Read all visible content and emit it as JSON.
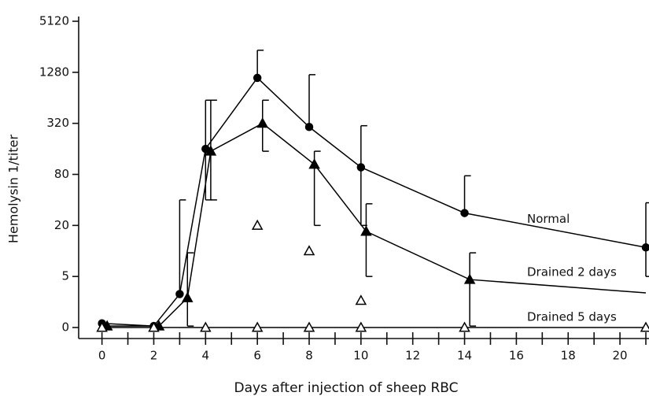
{
  "chart_data": {
    "type": "line",
    "xlabel": "Days after injection of sheep RBC",
    "ylabel": "Hemolysin 1/titer",
    "xlim": [
      -0.9,
      21
    ],
    "xticks": [
      0,
      2,
      4,
      6,
      8,
      10,
      12,
      14,
      16,
      18,
      20
    ],
    "xminor": [
      1,
      3,
      5,
      7,
      9,
      11,
      13,
      15,
      17,
      19,
      21
    ],
    "ylim": [
      0,
      5120
    ],
    "yticks": [
      0,
      5,
      20,
      80,
      320,
      1280,
      5120
    ],
    "log": true,
    "color": "#000000",
    "series": [
      {
        "name": "Normal",
        "marker": "circle",
        "x": [
          0,
          2,
          3,
          4,
          6,
          8,
          10,
          14,
          21
        ],
        "values": [
          1.4,
          1.3,
          3.1,
          160,
          1100,
          290,
          97,
          28,
          11
        ],
        "error_high": [
          null,
          null,
          40,
          600,
          2330,
          1200,
          300,
          77,
          37
        ],
        "error_low": [
          null,
          null,
          null,
          40,
          null,
          null,
          20,
          null,
          5
        ]
      },
      {
        "name": "Drained 2 days",
        "marker": "triangle",
        "x": [
          0.2,
          2.2,
          3.3,
          4.2,
          6.2,
          8.2,
          10.2,
          14.2,
          21
        ],
        "values": [
          1.3,
          1.3,
          2.8,
          150,
          320,
          105,
          17,
          4.6,
          3.2
        ],
        "markers": [
          true,
          true,
          true,
          true,
          true,
          true,
          true,
          true,
          false
        ],
        "error_high": [
          null,
          null,
          9.5,
          600,
          600,
          150,
          36,
          9.5,
          null
        ],
        "error_low": [
          null,
          null,
          1.3,
          40,
          150,
          20,
          5,
          1.3,
          null
        ]
      },
      {
        "name": "Drained 5 days",
        "marker": "open-triangle",
        "x": [
          0,
          2,
          4,
          6,
          8,
          10,
          14,
          21
        ],
        "values": [
          0,
          0,
          0,
          0,
          0,
          0,
          0,
          0
        ]
      }
    ],
    "extra_points": {
      "marker": "open-triangle",
      "x": [
        6,
        8,
        10
      ],
      "values": [
        20,
        10,
        2.6
      ]
    }
  }
}
